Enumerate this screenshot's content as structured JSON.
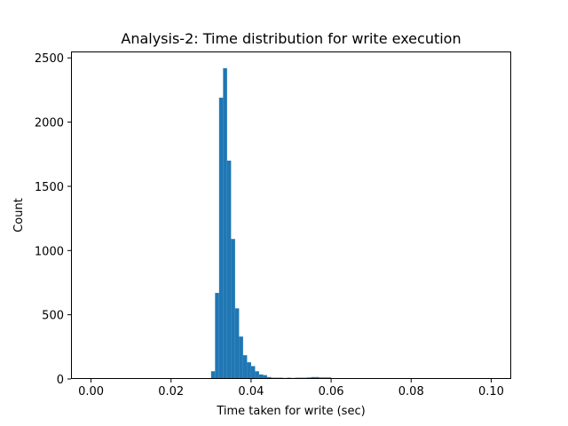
{
  "chart_data": {
    "type": "bar",
    "title": "Analysis-2: Time distribution for write execution",
    "xlabel": "Time taken for write (sec)",
    "ylabel": "Count",
    "xlim": [
      -0.005,
      0.105
    ],
    "ylim": [
      0,
      2550
    ],
    "xticks": [
      0.0,
      0.02,
      0.04,
      0.06,
      0.08,
      0.1
    ],
    "xtick_labels": [
      "0.00",
      "0.02",
      "0.04",
      "0.06",
      "0.08",
      "0.10"
    ],
    "yticks": [
      0,
      500,
      1000,
      1500,
      2000,
      2500
    ],
    "ytick_labels": [
      "0",
      "500",
      "1000",
      "1500",
      "2000",
      "2500"
    ],
    "bar_color": "#1f77b4",
    "grid": false,
    "bins": {
      "start": 0.0,
      "width": 0.001,
      "counts": [
        0,
        0,
        0,
        0,
        0,
        0,
        0,
        0,
        0,
        0,
        0,
        0,
        0,
        0,
        0,
        0,
        0,
        0,
        0,
        0,
        0,
        0,
        0,
        0,
        0,
        0,
        0,
        0,
        0,
        0,
        60,
        670,
        2190,
        2420,
        1700,
        1090,
        550,
        330,
        185,
        130,
        100,
        60,
        35,
        30,
        15,
        10,
        10,
        10,
        8,
        10,
        8,
        10,
        10,
        10,
        12,
        15,
        15,
        12,
        12,
        12,
        5,
        6,
        5,
        5,
        5,
        5,
        5,
        5,
        5,
        0
      ]
    }
  }
}
